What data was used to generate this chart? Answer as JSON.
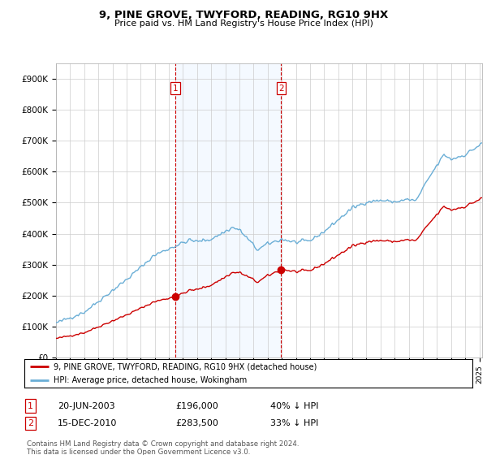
{
  "title": "9, PINE GROVE, TWYFORD, READING, RG10 9HX",
  "subtitle": "Price paid vs. HM Land Registry's House Price Index (HPI)",
  "legend_line1": "9, PINE GROVE, TWYFORD, READING, RG10 9HX (detached house)",
  "legend_line2": "HPI: Average price, detached house, Wokingham",
  "footnote": "Contains HM Land Registry data © Crown copyright and database right 2024.\nThis data is licensed under the Open Government Licence v3.0.",
  "sale1_date": "20-JUN-2003",
  "sale1_price": "£196,000",
  "sale1_hpi": "40% ↓ HPI",
  "sale1_year": 2003.47,
  "sale1_value": 196000,
  "sale2_date": "15-DEC-2010",
  "sale2_price": "£283,500",
  "sale2_hpi": "33% ↓ HPI",
  "sale2_year": 2010.96,
  "sale2_value": 283500,
  "red_color": "#cc0000",
  "blue_color": "#6aaed6",
  "shade_color": "#ddeeff",
  "vline_color": "#cc0000",
  "background_color": "#ffffff",
  "grid_color": "#cccccc",
  "ylim": [
    0,
    950000
  ],
  "xlim_start": 1995.0,
  "xlim_end": 2025.2
}
